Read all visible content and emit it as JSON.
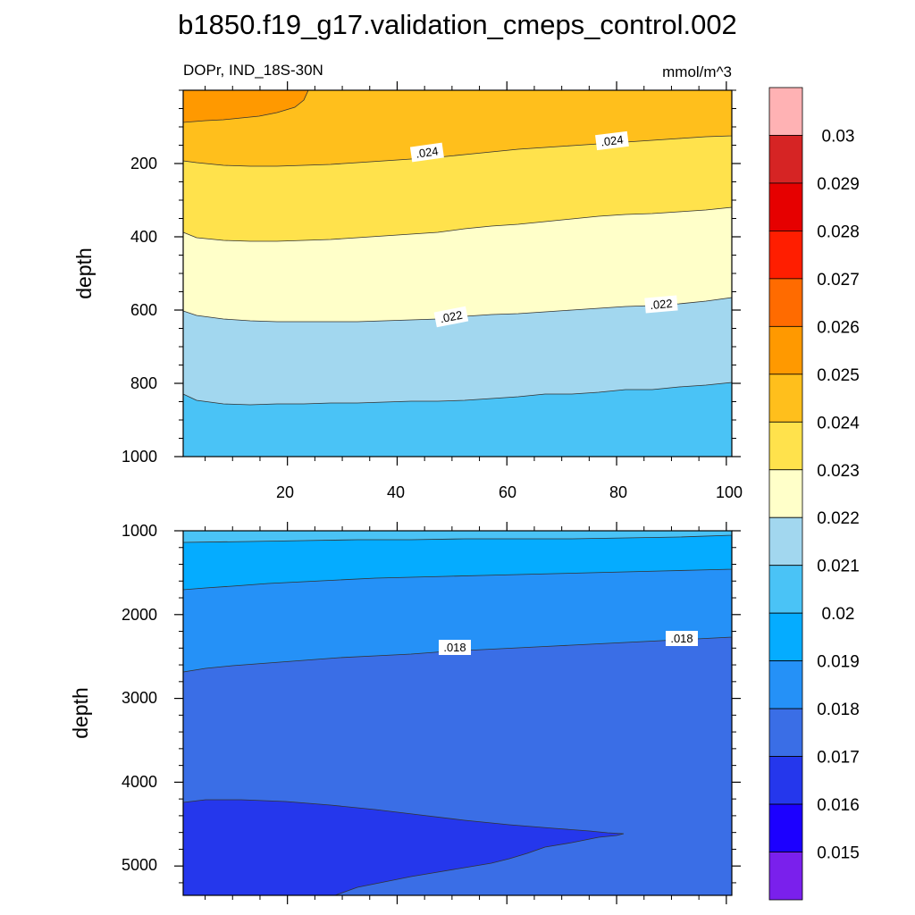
{
  "title": "b1850.f19_g17.validation_cmeps_control.002",
  "chart_data": [
    {
      "type": "contour",
      "panel": "upper",
      "left_label": "DOPr, IND_18S-30N",
      "right_label": "mmol/m^3",
      "ylabel": "depth",
      "xlabel": "",
      "xlim": [
        1,
        101
      ],
      "ylim": [
        1000,
        0
      ],
      "x_ticks": [
        20,
        40,
        60,
        80,
        100
      ],
      "x_tick_labels": [
        "20",
        "40",
        "60",
        "80",
        "100"
      ],
      "y_ticks": [
        200,
        400,
        600,
        800,
        1000
      ],
      "y_tick_labels": [
        "200",
        "400",
        "600",
        "800",
        "1000"
      ],
      "contour_levels": [
        0.022,
        0.023,
        0.024,
        0.025
      ],
      "contour_labels": [
        {
          "text": ".024",
          "x": 45,
          "depth": 178
        },
        {
          "text": ".024",
          "x": 79,
          "depth": 155
        },
        {
          "text": ".022",
          "x": 49,
          "depth": 625
        },
        {
          "text": ".022",
          "x": 87,
          "depth": 590
        }
      ]
    },
    {
      "type": "contour",
      "panel": "lower",
      "ylabel": "depth",
      "xlabel": "",
      "xlim": [
        1,
        101
      ],
      "ylim": [
        5350,
        1000
      ],
      "x_ticks": [
        20,
        40,
        60,
        80,
        100
      ],
      "x_tick_labels": [],
      "y_ticks": [
        1000,
        2000,
        3000,
        4000,
        5000
      ],
      "y_tick_labels": [
        "1000",
        "2000",
        "3000",
        "4000",
        "5000"
      ],
      "contour_levels": [
        0.016,
        0.017,
        0.018,
        0.019,
        0.02
      ],
      "contour_labels": [
        {
          "text": ".018",
          "x": 50,
          "depth": 2450
        },
        {
          "text": ".018",
          "x": 93,
          "depth": 2320
        }
      ]
    }
  ],
  "colorbar": {
    "labels": [
      "0.03",
      "0.029",
      "0.028",
      "0.027",
      "0.026",
      "0.025",
      "0.024",
      "0.023",
      "0.022",
      "0.021",
      "0.02",
      "0.019",
      "0.018",
      "0.017",
      "0.016",
      "0.015"
    ],
    "colors": [
      "#ffb2b4",
      "#d62424",
      "#e60000",
      "#ff1e00",
      "#ff6b00",
      "#ff9900",
      "#ffbf1c",
      "#ffe24c",
      "#ffffc9",
      "#a2d7ef",
      "#4ac3f6",
      "#05acff",
      "#2591f7",
      "#3a6ee6",
      "#2537ec",
      "#1c00ff",
      "#7a20ec"
    ]
  }
}
